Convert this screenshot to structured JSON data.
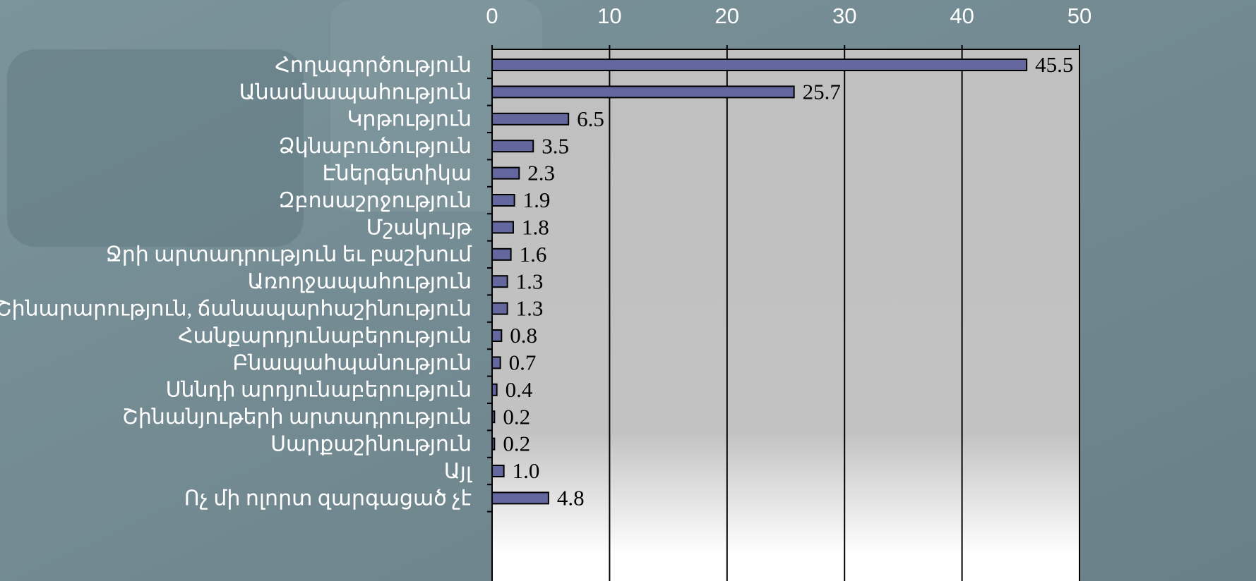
{
  "chart_data": {
    "type": "bar",
    "categories": [
      "Հողագործություն",
      "Անասնապահություն",
      "Կրթություն",
      "Ձկնաբուծություն",
      "Էներգետիկա",
      "Զբոսաշրջություն",
      "Մշակույթ",
      "Ջրի արտադրություն եւ բաշխում",
      "Առողջապահություն",
      "Շինարարություն, ճանապարհաշինություն",
      "Հանքարդյունաբերություն",
      "Բնապահպանություն",
      "Սննդի արդյունաբերություն",
      "Շինանյութերի արտադրություն",
      "Սարքաշինություն",
      "Այլ",
      "Ոչ մի ոլորտ զարգացած չէ"
    ],
    "values": [
      45.5,
      25.7,
      6.5,
      3.5,
      2.3,
      1.9,
      1.8,
      1.6,
      1.3,
      1.3,
      0.8,
      0.7,
      0.4,
      0.2,
      0.2,
      1,
      4.8
    ],
    "value_labels": [
      "45.5",
      "25.7",
      "6.5",
      "3.5",
      "2.3",
      "1.9",
      "1.8",
      "1.6",
      "1.3",
      "1.3",
      "0.8",
      "0.7",
      "0.4",
      "0.2",
      "0.2",
      "1.0",
      "4.8"
    ],
    "color": "#64669e",
    "xlim": [
      0,
      50
    ],
    "xticks": [
      0,
      10,
      20,
      30,
      40,
      50
    ],
    "grid": true
  }
}
